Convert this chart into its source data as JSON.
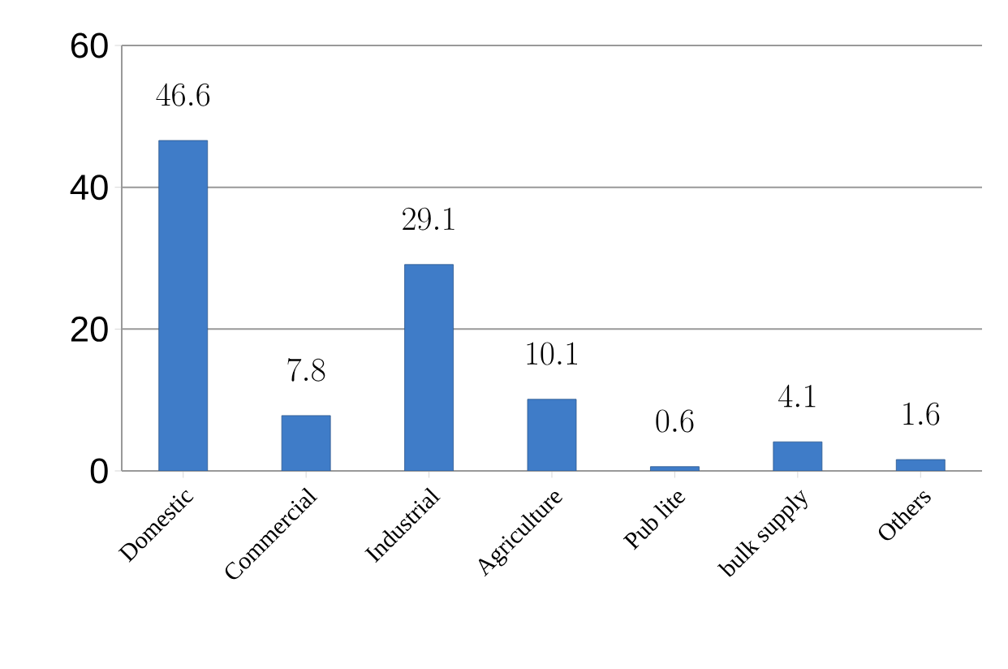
{
  "chart_data": {
    "type": "bar",
    "categories": [
      "Domestic",
      "Commercial",
      "Industrial",
      "Agriculture",
      "Pub lite",
      "bulk supply",
      "Others"
    ],
    "values": [
      46.6,
      7.8,
      29.1,
      10.1,
      0.6,
      4.1,
      1.6
    ],
    "color": "#3f7cc8",
    "ylim": [
      0,
      60
    ],
    "yticks": [
      0,
      20,
      40,
      60
    ],
    "grid": "y",
    "data_labels": true
  }
}
